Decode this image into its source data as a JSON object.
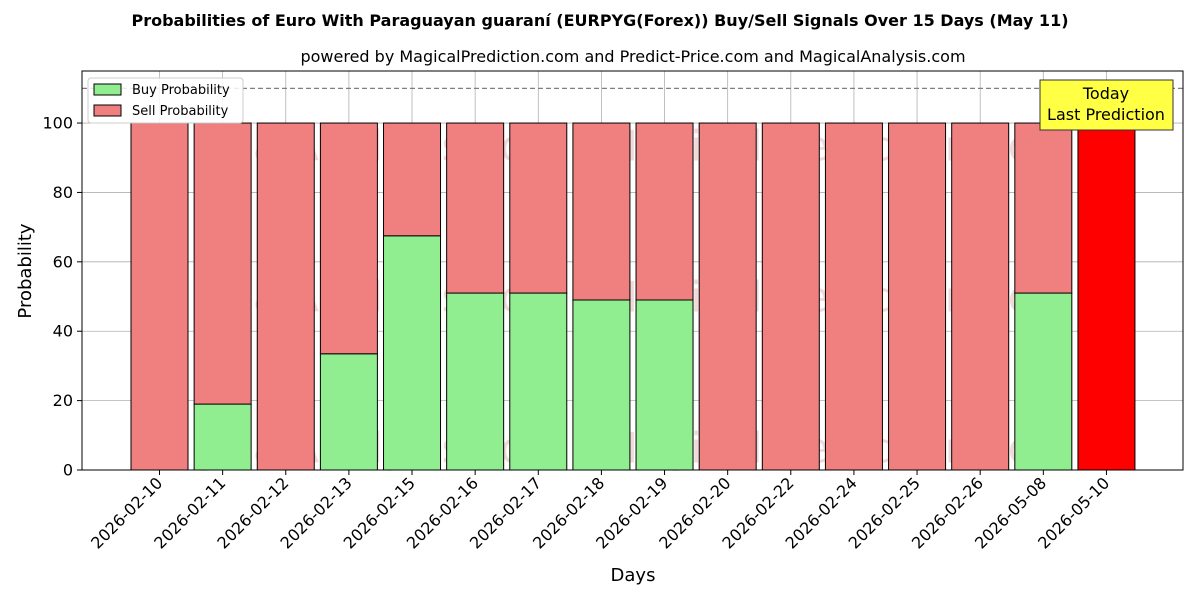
{
  "chart_data": {
    "type": "bar",
    "stacked": true,
    "title": "Probabilities of Euro With Paraguayan guaraní (EURPYG(Forex)) Buy/Sell Signals Over 15 Days (May 11)",
    "subtitle": "powered by MagicalPrediction.com and Predict-Price.com and MagicalAnalysis.com",
    "xlabel": "Days",
    "ylabel": "Probability",
    "ylim": [
      0,
      115
    ],
    "yticks": [
      "0",
      "20",
      "40",
      "60",
      "80",
      "100"
    ],
    "grid": true,
    "legend_position": "top-left",
    "categories": [
      "2026-02-10",
      "2026-02-11",
      "2026-02-12",
      "2026-02-13",
      "2026-02-15",
      "2026-02-16",
      "2026-02-17",
      "2026-02-18",
      "2026-02-19",
      "2026-02-20",
      "2026-02-22",
      "2026-02-24",
      "2026-02-25",
      "2026-02-26",
      "2026-05-08",
      "2026-05-10"
    ],
    "series": [
      {
        "name": "Buy Probability",
        "color": "#90ee90",
        "values": [
          0,
          19,
          0,
          33.5,
          67.5,
          51,
          51,
          49,
          49,
          0,
          0,
          0,
          0,
          0,
          51,
          0
        ]
      },
      {
        "name": "Sell Probability",
        "color": "#f08080",
        "values": [
          100,
          81,
          100,
          66.5,
          32.5,
          49,
          49,
          51,
          51,
          100,
          100,
          100,
          100,
          100,
          49,
          100
        ]
      }
    ],
    "highlight": {
      "index": 15,
      "color": "#ff0000"
    },
    "reference_line": {
      "y": 110,
      "style": "dashed",
      "color": "#808080"
    },
    "annotation": {
      "lines": [
        "Today",
        "Last Prediction"
      ],
      "background": "#ffff44",
      "position": "top-right"
    },
    "watermark": [
      "MagicalAnalysis.com",
      "MagicalPrediction.com"
    ]
  }
}
